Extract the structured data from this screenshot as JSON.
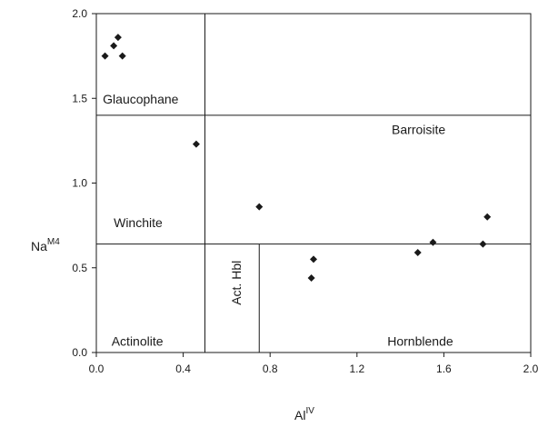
{
  "chart_data": {
    "type": "scatter",
    "title": "",
    "xlabel": {
      "main": "Al",
      "sup": "IV"
    },
    "ylabel": {
      "main": "Na",
      "sup": "M4"
    },
    "xlim": [
      0.0,
      2.0
    ],
    "ylim": [
      0.0,
      2.0
    ],
    "x_ticks": [
      "0.0",
      "0.4",
      "0.8",
      "1.2",
      "1.6",
      "2.0"
    ],
    "y_ticks": [
      "0.0",
      "0.5",
      "1.0",
      "1.5",
      "2.0"
    ],
    "grid": false,
    "marker": "diamond",
    "marker_color": "#1a1a1a",
    "points": [
      {
        "x": 0.04,
        "y": 1.75
      },
      {
        "x": 0.08,
        "y": 1.81
      },
      {
        "x": 0.1,
        "y": 1.86
      },
      {
        "x": 0.12,
        "y": 1.75
      },
      {
        "x": 0.46,
        "y": 1.23
      },
      {
        "x": 0.75,
        "y": 0.86
      },
      {
        "x": 0.99,
        "y": 0.44
      },
      {
        "x": 1.0,
        "y": 0.55
      },
      {
        "x": 1.48,
        "y": 0.59
      },
      {
        "x": 1.55,
        "y": 0.65
      },
      {
        "x": 1.78,
        "y": 0.64
      },
      {
        "x": 1.8,
        "y": 0.8
      }
    ],
    "boundaries": [
      {
        "x1": 0.5,
        "y1": 0.0,
        "x2": 0.5,
        "y2": 2.0
      },
      {
        "x1": 0.0,
        "y1": 1.4,
        "x2": 2.0,
        "y2": 1.4
      },
      {
        "x1": 0.0,
        "y1": 0.64,
        "x2": 2.0,
        "y2": 0.64
      },
      {
        "x1": 0.75,
        "y1": 0.0,
        "x2": 0.75,
        "y2": 0.64
      }
    ],
    "field_labels": [
      {
        "name": "glaucophane",
        "text": "Glaucophane",
        "x": 0.03,
        "y": 1.47,
        "rotate": false
      },
      {
        "name": "barroisite",
        "text": "Barroisite",
        "x": 1.36,
        "y": 1.29,
        "rotate": false
      },
      {
        "name": "winchite",
        "text": "Winchite",
        "x": 0.08,
        "y": 0.74,
        "rotate": false
      },
      {
        "name": "actinolite",
        "text": "Actinolite",
        "x": 0.07,
        "y": 0.04,
        "rotate": false
      },
      {
        "name": "act-hbl",
        "text": "Act. Hbl",
        "x": 0.665,
        "y": 0.28,
        "rotate": true
      },
      {
        "name": "hornblende",
        "text": "Hornblende",
        "x": 1.34,
        "y": 0.04,
        "rotate": false
      }
    ]
  }
}
